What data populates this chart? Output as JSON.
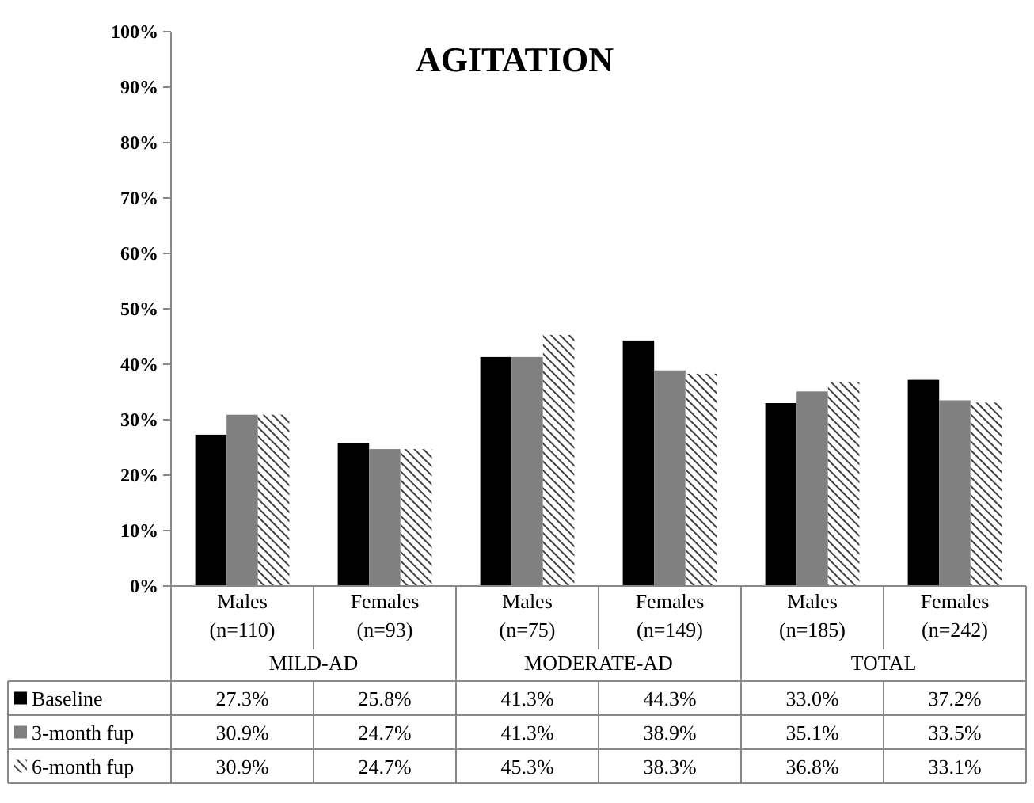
{
  "chart_data": {
    "type": "bar",
    "title": "AGITATION",
    "categories": [
      "Males (n=110)",
      "Females (n=93)",
      "Males (n=75)",
      "Females (n=149)",
      "Males (n=185)",
      "Females (n=242)"
    ],
    "annotations": [
      "MILD-AD",
      "MODERATE-AD",
      "TOTAL"
    ],
    "series": [
      {
        "name": "Baseline",
        "color": "#000000",
        "values": [
          27.3,
          25.8,
          41.3,
          44.3,
          33.0,
          37.2
        ],
        "value_labels": [
          "27.3%",
          "25.8%",
          "41.3%",
          "44.3%",
          "33.0%",
          "37.2%"
        ]
      },
      {
        "name": "3-month fup",
        "color": "#808080",
        "values": [
          30.9,
          24.7,
          41.3,
          38.9,
          35.1,
          33.5
        ],
        "value_labels": [
          "30.9%",
          "24.7%",
          "41.3%",
          "38.9%",
          "35.1%",
          "33.5%"
        ]
      },
      {
        "name": "6-month fup",
        "color": "#404040",
        "values": [
          30.9,
          24.7,
          45.3,
          38.3,
          36.8,
          33.1
        ],
        "value_labels": [
          "30.9%",
          "24.7%",
          "45.3%",
          "38.3%",
          "36.8%",
          "33.1%"
        ]
      }
    ],
    "ylim": [
      0,
      100
    ],
    "yticks": [
      {
        "value": 0,
        "label": "0%"
      },
      {
        "value": 10,
        "label": "10%"
      },
      {
        "value": 20,
        "label": "20%"
      },
      {
        "value": 30,
        "label": "30%"
      },
      {
        "value": 40,
        "label": "40%"
      },
      {
        "value": 50,
        "label": "50%"
      },
      {
        "value": 60,
        "label": "60%"
      },
      {
        "value": 70,
        "label": "70%"
      },
      {
        "value": 80,
        "label": "80%"
      },
      {
        "value": 90,
        "label": "90%"
      },
      {
        "value": 100,
        "label": "100%"
      }
    ],
    "grid": false,
    "legend": "bottom"
  }
}
